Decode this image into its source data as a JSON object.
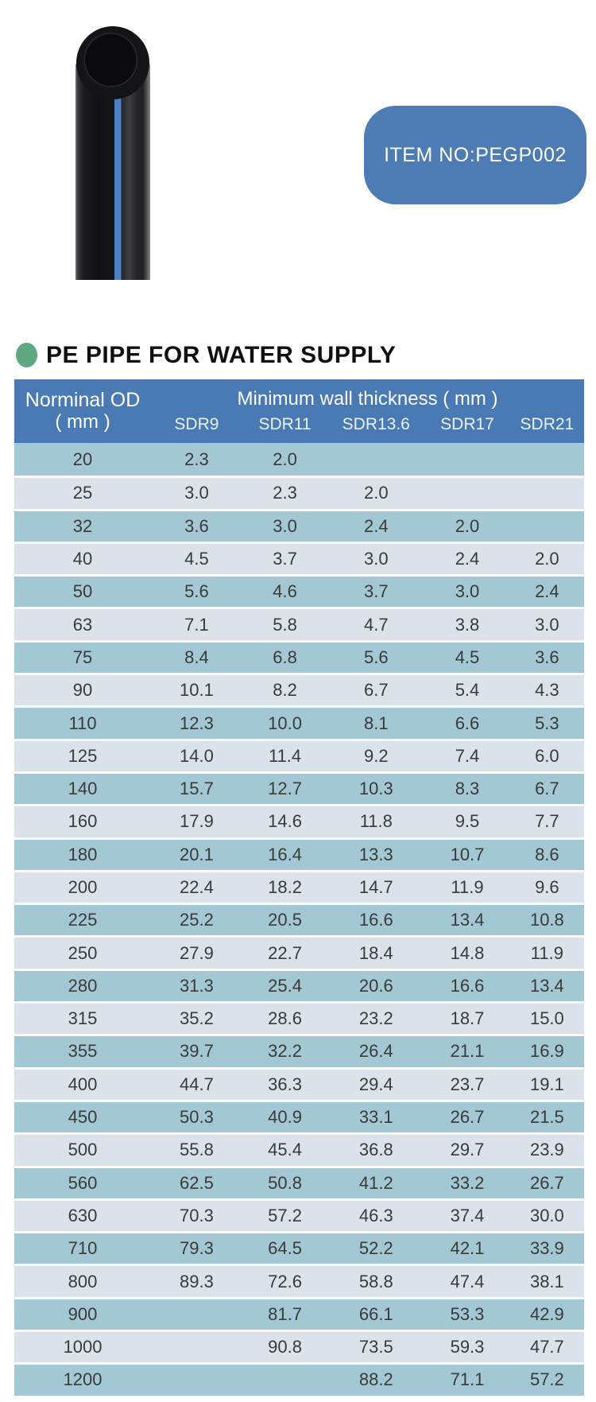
{
  "badge": {
    "item_label": "ITEM NO:PEGP002"
  },
  "title": {
    "text": "PE PIPE FOR WATER SUPPLY"
  },
  "colors": {
    "header_blue": "#4a7ab4",
    "badge_blue": "#4d7cb5",
    "row_teal": "#a3c8d4",
    "row_light": "#dce2ea",
    "bullet_green": "#5fa883",
    "pipe_stripe_blue": "#4b80c2"
  },
  "table": {
    "col0_header_line1": "Norminal OD",
    "col0_header_line2": "( mm )",
    "group_header": "Minimum wall thickness ( mm )",
    "sdr_headers": [
      "SDR9",
      "SDR11",
      "SDR13.6",
      "SDR17",
      "SDR21"
    ],
    "rows": [
      [
        "20",
        "2.3",
        "2.0",
        "",
        "",
        ""
      ],
      [
        "25",
        "3.0",
        "2.3",
        "2.0",
        "",
        ""
      ],
      [
        "32",
        "3.6",
        "3.0",
        "2.4",
        "2.0",
        ""
      ],
      [
        "40",
        "4.5",
        "3.7",
        "3.0",
        "2.4",
        "2.0"
      ],
      [
        "50",
        "5.6",
        "4.6",
        "3.7",
        "3.0",
        "2.4"
      ],
      [
        "63",
        "7.1",
        "5.8",
        "4.7",
        "3.8",
        "3.0"
      ],
      [
        "75",
        "8.4",
        "6.8",
        "5.6",
        "4.5",
        "3.6"
      ],
      [
        "90",
        "10.1",
        "8.2",
        "6.7",
        "5.4",
        "4.3"
      ],
      [
        "110",
        "12.3",
        "10.0",
        "8.1",
        "6.6",
        "5.3"
      ],
      [
        "125",
        "14.0",
        "11.4",
        "9.2",
        "7.4",
        "6.0"
      ],
      [
        "140",
        "15.7",
        "12.7",
        "10.3",
        "8.3",
        "6.7"
      ],
      [
        "160",
        "17.9",
        "14.6",
        "11.8",
        "9.5",
        "7.7"
      ],
      [
        "180",
        "20.1",
        "16.4",
        "13.3",
        "10.7",
        "8.6"
      ],
      [
        "200",
        "22.4",
        "18.2",
        "14.7",
        "11.9",
        "9.6"
      ],
      [
        "225",
        "25.2",
        "20.5",
        "16.6",
        "13.4",
        "10.8"
      ],
      [
        "250",
        "27.9",
        "22.7",
        "18.4",
        "14.8",
        "11.9"
      ],
      [
        "280",
        "31.3",
        "25.4",
        "20.6",
        "16.6",
        "13.4"
      ],
      [
        "315",
        "35.2",
        "28.6",
        "23.2",
        "18.7",
        "15.0"
      ],
      [
        "355",
        "39.7",
        "32.2",
        "26.4",
        "21.1",
        "16.9"
      ],
      [
        "400",
        "44.7",
        "36.3",
        "29.4",
        "23.7",
        "19.1"
      ],
      [
        "450",
        "50.3",
        "40.9",
        "33.1",
        "26.7",
        "21.5"
      ],
      [
        "500",
        "55.8",
        "45.4",
        "36.8",
        "29.7",
        "23.9"
      ],
      [
        "560",
        "62.5",
        "50.8",
        "41.2",
        "33.2",
        "26.7"
      ],
      [
        "630",
        "70.3",
        "57.2",
        "46.3",
        "37.4",
        "30.0"
      ],
      [
        "710",
        "79.3",
        "64.5",
        "52.2",
        "42.1",
        "33.9"
      ],
      [
        "800",
        "89.3",
        "72.6",
        "58.8",
        "47.4",
        "38.1"
      ],
      [
        "900",
        "",
        "81.7",
        "66.1",
        "53.3",
        "42.9"
      ],
      [
        "1000",
        "",
        "90.8",
        "73.5",
        "59.3",
        "47.7"
      ],
      [
        "1200",
        "",
        "",
        "88.2",
        "71.1",
        "57.2"
      ]
    ]
  }
}
